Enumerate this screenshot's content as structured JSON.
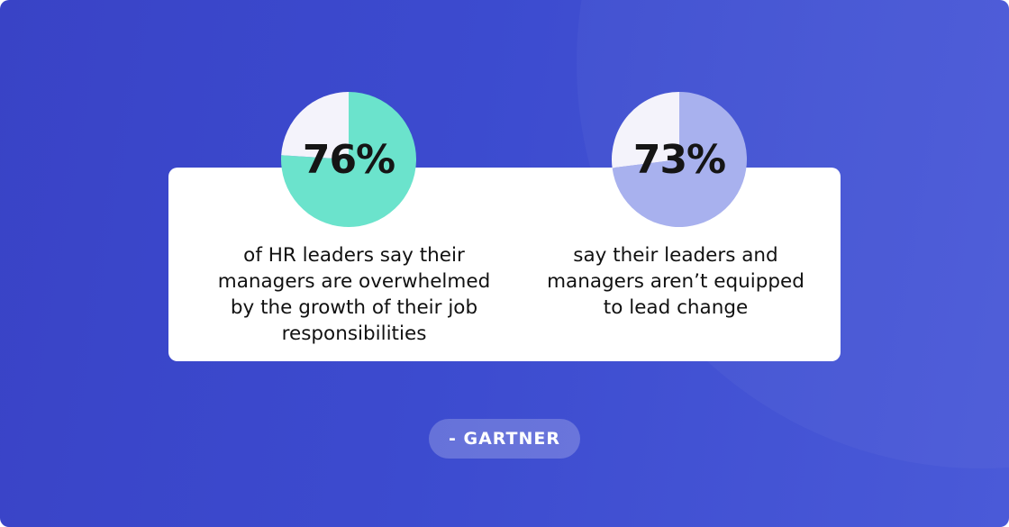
{
  "chart_data": [
    {
      "type": "pie",
      "value_label": "76%",
      "values": [
        76,
        24
      ],
      "colors": [
        "#6be3cc",
        "#f4f3fb"
      ],
      "caption_lines": [
        "of HR leaders say their",
        "managers are overwhelmed",
        "by the growth of their job",
        "responsibilities"
      ]
    },
    {
      "type": "pie",
      "value_label": "73%",
      "values": [
        73,
        27
      ],
      "colors": [
        "#a8b1ee",
        "#f4f3fb"
      ],
      "caption_lines": [
        "say their leaders and",
        "managers aren’t equipped",
        "to lead change"
      ]
    }
  ],
  "source": "- GARTNER"
}
